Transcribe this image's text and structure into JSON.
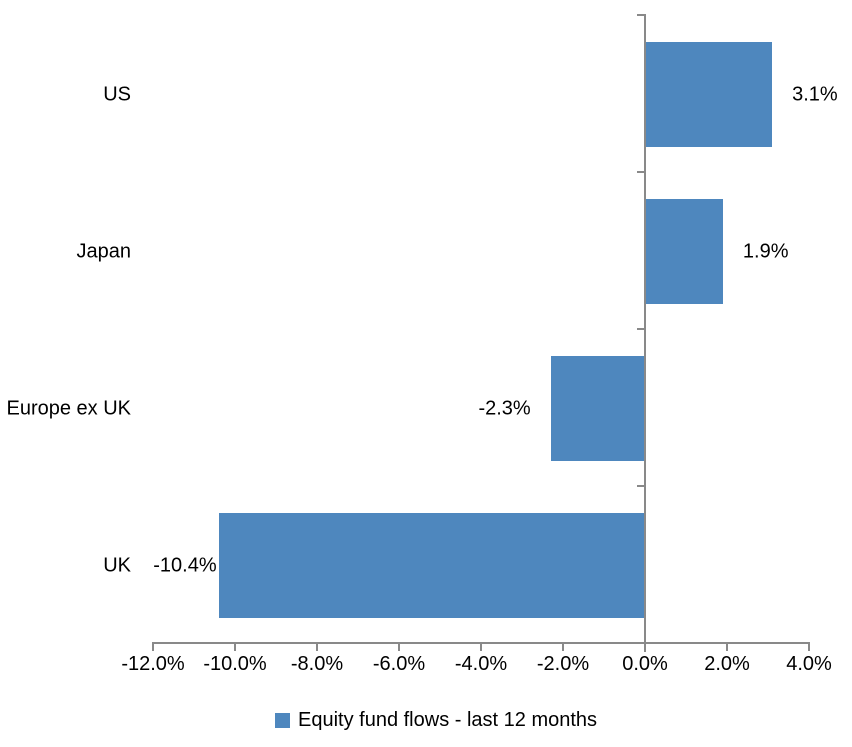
{
  "chart_data": {
    "type": "bar",
    "orientation": "horizontal",
    "title": "",
    "categories": [
      "US",
      "Japan",
      "Europe ex UK",
      "UK"
    ],
    "values": [
      3.1,
      1.9,
      -2.3,
      -10.4
    ],
    "value_labels": [
      "3.1%",
      "1.9%",
      "-2.3%",
      "-10.4%"
    ],
    "series_name": "Equity fund flows - last 12 months",
    "xlim": [
      -12,
      4
    ],
    "x_tick_step": 2,
    "x_tick_labels": [
      "-12.0%",
      "-10.0%",
      "-8.0%",
      "-6.0%",
      "-4.0%",
      "-2.0%",
      "0.0%",
      "2.0%",
      "4.0%"
    ],
    "grid": false,
    "bar_color": "#4E87BE",
    "axis_color": "#898989",
    "text_color": "#000000",
    "legend": {
      "position": "bottom",
      "swatch_color": "#4E87BE",
      "label": "Equity fund flows - last 12 months"
    },
    "layout_hints": {
      "value_label_gaps": [
        20,
        20,
        20,
        2
      ]
    }
  }
}
